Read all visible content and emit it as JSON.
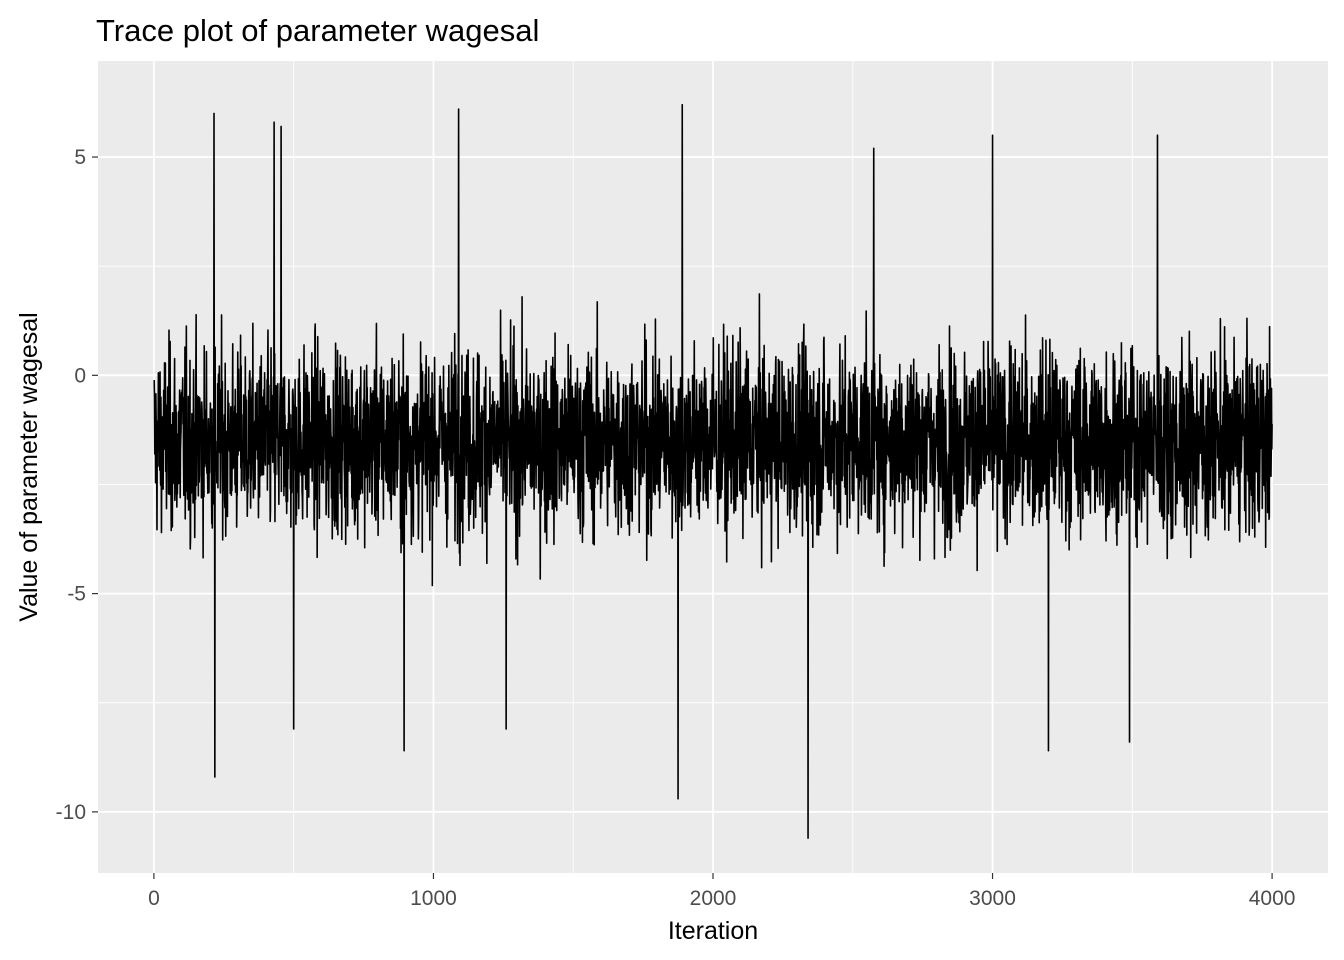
{
  "chart_data": {
    "type": "line",
    "title": "Trace plot of parameter wagesal",
    "xlabel": "Iteration",
    "ylabel": "Value of parameter wagesal",
    "xlim": [
      -200,
      4200
    ],
    "ylim": [
      -11.4,
      7.2
    ],
    "x_ticks": [
      0,
      1000,
      2000,
      3000,
      4000
    ],
    "x_tick_labels": [
      "0",
      "1000",
      "2000",
      "3000",
      "4000"
    ],
    "y_ticks": [
      -10,
      -5,
      0,
      5
    ],
    "y_tick_labels": [
      "-10",
      "-5",
      "0",
      "5"
    ],
    "grid": true,
    "legend": "none",
    "colors": {
      "panel": "#ebebeb",
      "grid": "#ffffff",
      "line": "#000000",
      "tick_text": "#4d4d4d",
      "tick_mark": "#333333"
    },
    "series": [
      {
        "x_range": [
          1,
          4000
        ],
        "n_draws": 4000,
        "center": -1.5,
        "typical_range": [
          -4.5,
          1.8
        ],
        "extremes": [
          {
            "x": 215,
            "y": 6.0
          },
          {
            "x": 218,
            "y": -9.2
          },
          {
            "x": 430,
            "y": 5.8
          },
          {
            "x": 455,
            "y": 5.7
          },
          {
            "x": 500,
            "y": -8.1
          },
          {
            "x": 895,
            "y": -8.6
          },
          {
            "x": 1090,
            "y": 6.1
          },
          {
            "x": 1260,
            "y": -8.1
          },
          {
            "x": 1875,
            "y": -9.7
          },
          {
            "x": 1890,
            "y": 6.2
          },
          {
            "x": 2340,
            "y": -10.6
          },
          {
            "x": 2575,
            "y": 5.2
          },
          {
            "x": 3000,
            "y": 5.5
          },
          {
            "x": 3200,
            "y": -8.6
          },
          {
            "x": 3490,
            "y": -8.4
          },
          {
            "x": 3590,
            "y": 5.5
          }
        ]
      }
    ]
  }
}
